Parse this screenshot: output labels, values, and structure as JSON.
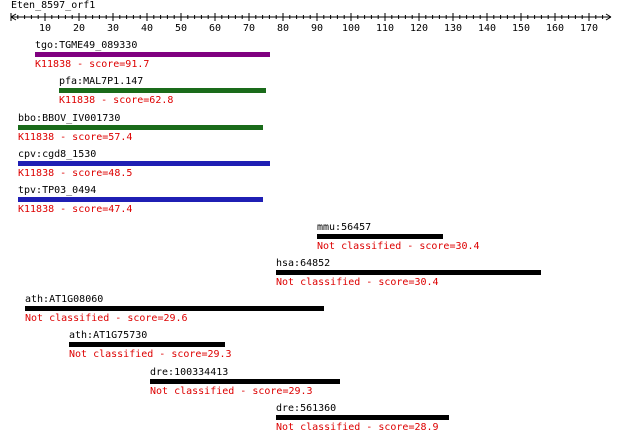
{
  "query": {
    "name": "Eten_8597_orf1",
    "axis_ticks": [
      10,
      20,
      30,
      40,
      50,
      60,
      70,
      80,
      90,
      100,
      110,
      120,
      130,
      140,
      150,
      160,
      170
    ],
    "axis_max": 177
  },
  "colors": {
    "axis": "#000000",
    "score_text": "#dd0000",
    "purple": "#800080",
    "green": "#1a6b1a",
    "blue": "#1f1fb4",
    "black": "#000000"
  },
  "hits": [
    {
      "id": "tgo:TGME49_089330",
      "score_label": "K11838 - score=91.7",
      "start": 7,
      "end": 76,
      "color_key": "purple"
    },
    {
      "id": "pfa:MAL7P1.147",
      "score_label": "K11838 - score=62.8",
      "start": 14,
      "end": 75,
      "color_key": "green"
    },
    {
      "id": "bbo:BBOV_IV001730",
      "score_label": "K11838 - score=57.4",
      "start": 2,
      "end": 74,
      "color_key": "green"
    },
    {
      "id": "cpv:cgd8_1530",
      "score_label": "K11838 - score=48.5",
      "start": 2,
      "end": 76,
      "color_key": "blue"
    },
    {
      "id": "tpv:TP03_0494",
      "score_label": "K11838 - score=47.4",
      "start": 2,
      "end": 74,
      "color_key": "blue"
    },
    {
      "id": "mmu:56457",
      "score_label": "Not classified - score=30.4",
      "start": 90,
      "end": 127,
      "color_key": "black"
    },
    {
      "id": "hsa:64852",
      "score_label": "Not classified - score=30.4",
      "start": 78,
      "end": 156,
      "color_key": "black"
    },
    {
      "id": "ath:AT1G08060",
      "score_label": "Not classified - score=29.6",
      "start": 4,
      "end": 92,
      "color_key": "black"
    },
    {
      "id": "ath:AT1G75730",
      "score_label": "Not classified - score=29.3",
      "start": 17,
      "end": 63,
      "color_key": "black"
    },
    {
      "id": "dre:100334413",
      "score_label": "Not classified - score=29.3",
      "start": 41,
      "end": 97,
      "color_key": "black"
    },
    {
      "id": "dre:561360",
      "score_label": "Not classified - score=28.9",
      "start": 78,
      "end": 129,
      "color_key": "black"
    }
  ]
}
